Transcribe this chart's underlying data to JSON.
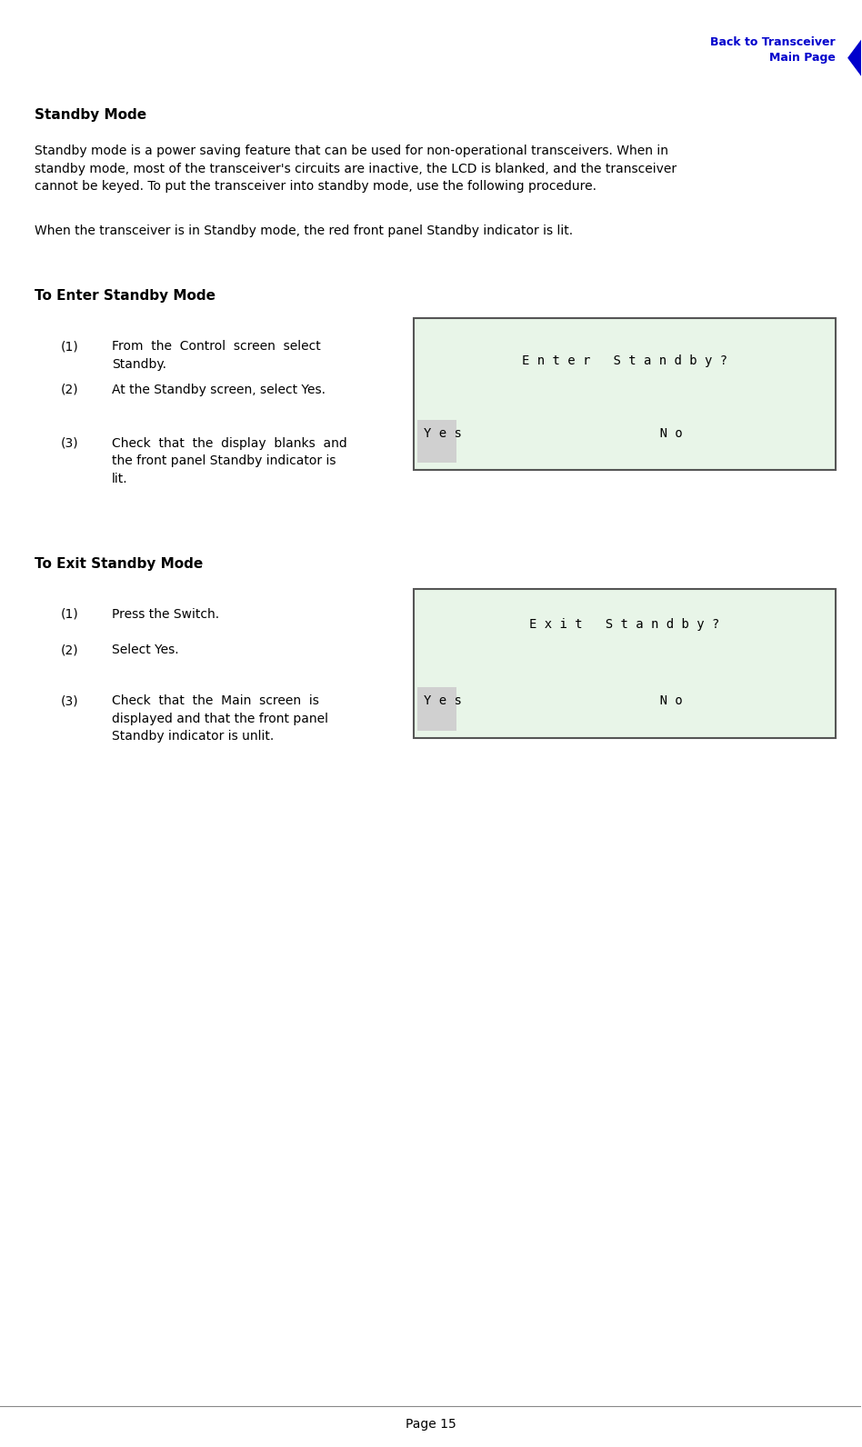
{
  "page_num": "Page 15",
  "nav_text": "Back to Transceiver\nMain Page",
  "nav_color": "#0000CC",
  "bg_color": "#ffffff",
  "title": "Standby Mode",
  "intro_text": "Standby mode is a power saving feature that can be used for non-operational transceivers. When in\nstandby mode, most of the transceiver's circuits are inactive, the LCD is blanked, and the transceiver\ncannot be keyed. To put the transceiver into standby mode, use the following procedure.",
  "note_text": "When the transceiver is in Standby mode, the red front panel Standby indicator is lit.",
  "section1_title": "To Enter Standby Mode",
  "section1_steps": [
    "From  the  Control  screen  select\nStandby.",
    "At the Standby screen, select Yes.",
    "Check  that  the  display  blanks  and\nthe front panel Standby indicator is\nlit."
  ],
  "lcd1_line1": "E n t e r   S t a n d b y ?",
  "lcd1_line2": "Y e s                          N o",
  "section2_title": "To Exit Standby Mode",
  "section2_steps": [
    "Press the Switch.",
    "Select Yes.",
    "Check  that  the  Main  screen  is\ndisplayed and that the front panel\nStandby indicator is unlit."
  ],
  "lcd2_line1": "E x i t   S t a n d b y ?",
  "lcd2_line2": "Y e s                          N o",
  "lcd_bg": "#e8f5e8",
  "lcd_border": "#555555",
  "yes_bg": "#d0d0d0",
  "text_color": "#000000",
  "line_color": "#888888"
}
